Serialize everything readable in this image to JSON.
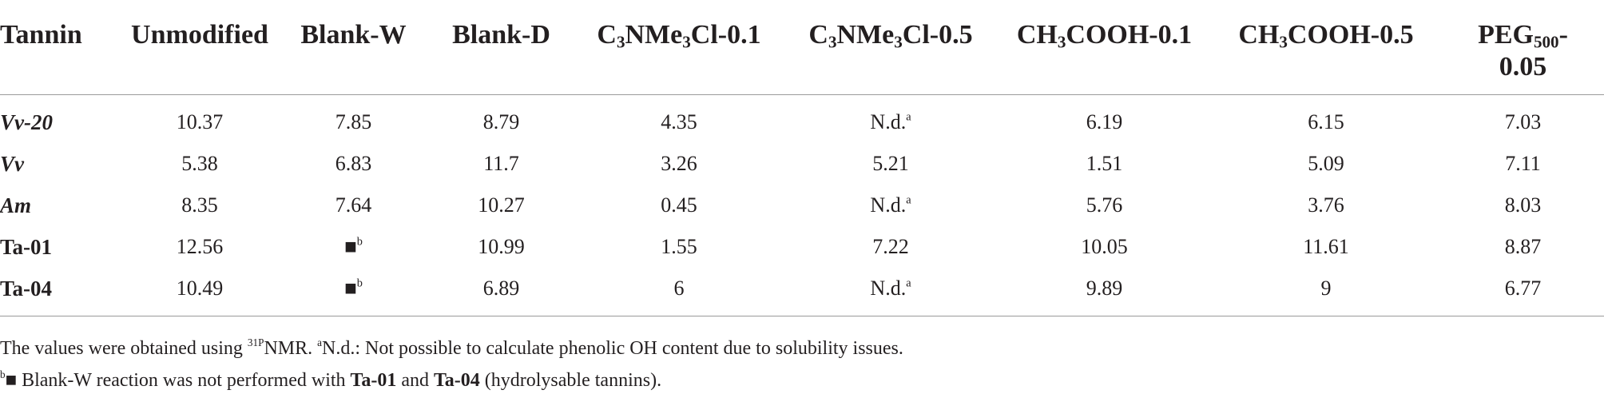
{
  "table": {
    "columns": [
      {
        "base": "Tannin"
      },
      {
        "base": "Unmodified"
      },
      {
        "base": "Blank-W"
      },
      {
        "base": "Blank-D"
      },
      {
        "base": "C",
        "s1": "3",
        "mid": "NMe",
        "s2": "3",
        "tail": "Cl-0.1"
      },
      {
        "base": "C",
        "s1": "3",
        "mid": "NMe",
        "s2": "3",
        "tail": "Cl-0.5"
      },
      {
        "base": "CH",
        "s1": "3",
        "mid": "COOH-0.1"
      },
      {
        "base": "CH",
        "s1": "3",
        "mid": "COOH-0.5"
      },
      {
        "base": "PEG",
        "s1": "500",
        "mid": "-",
        "line2": "0.05"
      }
    ],
    "rows": [
      {
        "name": "Vv-20",
        "italic": true,
        "cells": [
          "10.37",
          "7.85",
          "8.79",
          "4.35",
          "N.d.",
          "6.19",
          "6.15",
          "7.03"
        ],
        "sups": [
          "",
          "",
          "",
          "",
          "a",
          "",
          "",
          ""
        ]
      },
      {
        "name": "Vv",
        "italic": true,
        "cells": [
          "5.38",
          "6.83",
          "11.7",
          "3.26",
          "5.21",
          "1.51",
          "5.09",
          "7.11"
        ],
        "sups": [
          "",
          "",
          "",
          "",
          "",
          "",
          "",
          ""
        ]
      },
      {
        "name": "Am",
        "italic": true,
        "cells": [
          "8.35",
          "7.64",
          "10.27",
          "0.45",
          "N.d.",
          "5.76",
          "3.76",
          "8.03"
        ],
        "sups": [
          "",
          "",
          "",
          "",
          "a",
          "",
          "",
          ""
        ]
      },
      {
        "name": "Ta-01",
        "italic": false,
        "cells": [
          "12.56",
          "■",
          "10.99",
          "1.55",
          "7.22",
          "10.05",
          "11.61",
          "8.87"
        ],
        "sups": [
          "",
          "b",
          "",
          "",
          "",
          "",
          "",
          ""
        ]
      },
      {
        "name": "Ta-04",
        "italic": false,
        "cells": [
          "10.49",
          "■",
          "6.89",
          "6",
          "N.d.",
          "9.89",
          "9",
          "6.77"
        ],
        "sups": [
          "",
          "b",
          "",
          "",
          "a",
          "",
          "",
          ""
        ]
      }
    ]
  },
  "footnotes": {
    "line1_a": "The values were obtained using ",
    "line1_sup1": "31P",
    "line1_b": "NMR. ",
    "line1_sup2": "a",
    "line1_c": "N.d.: Not possible to calculate phenolic OH content due to solubility issues.",
    "line2_sup": "b",
    "line2_a": "■ Blank-W reaction was not performed with ",
    "line2_bold1": "Ta-01",
    "line2_b": " and ",
    "line2_bold2": "Ta-04",
    "line2_c": " (hydrolysable tannins)."
  }
}
